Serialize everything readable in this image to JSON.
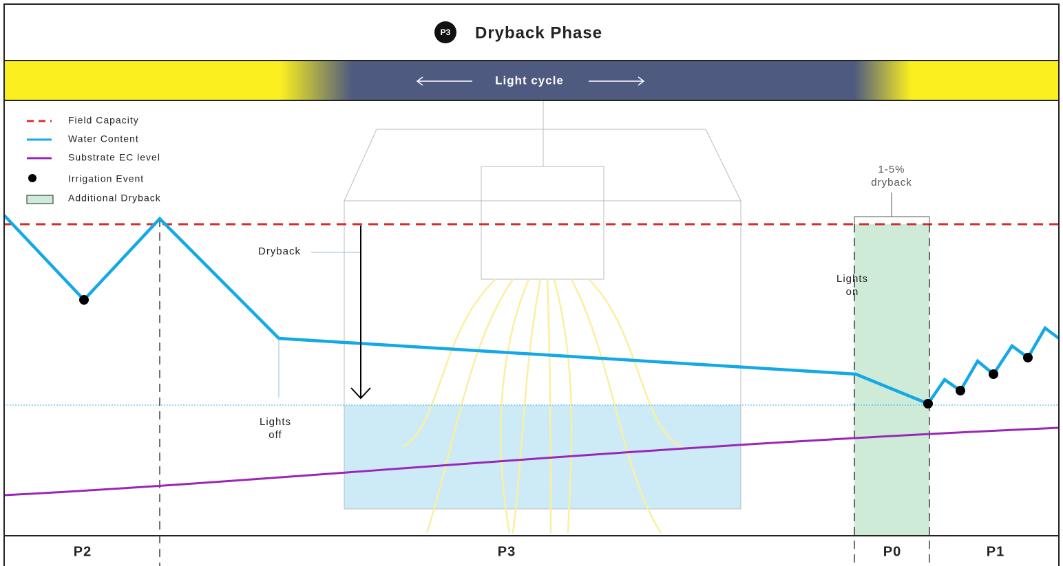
{
  "header": {
    "badge": "P3",
    "title": "Dryback Phase"
  },
  "light_band": {
    "label": "Light cycle"
  },
  "legend": [
    "Field Capacity",
    "Water Content",
    "Substrate EC level",
    "Irrigation Event",
    "Additional Dryback"
  ],
  "annotations": {
    "dryback": "Dryback",
    "lights_off": [
      "Lights",
      "off"
    ],
    "lights_on": [
      "Lights",
      "on"
    ],
    "dryback_range": [
      "1-5%",
      "dryback"
    ]
  },
  "phases": [
    "P2",
    "P3",
    "P0",
    "P1"
  ]
}
